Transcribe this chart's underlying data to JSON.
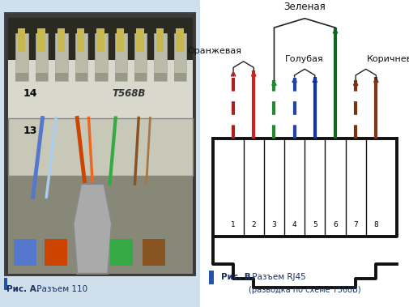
{
  "bg_color": "#cfe0ec",
  "right_panel_bg": "#ffffff",
  "fig_width": 5.05,
  "fig_height": 3.79,
  "caption_a_bold": "Рис. А.",
  "caption_a_text": " Разъем 110",
  "caption_b_bold": "Рис. В.",
  "caption_b_text": " Разъем RJ45",
  "caption_b2": "(разводка по схеме T568B)",
  "label_zelenaya": "Зеленая",
  "label_oranzhevaya": "Оранжевая",
  "label_golubaya": "Голубая",
  "label_korichnevaya": "Коричневая",
  "pin_numbers": [
    "1",
    "2",
    "3",
    "4",
    "5",
    "6",
    "7",
    "8"
  ],
  "connector_color": "#111111",
  "caption_color": "#1a3060",
  "blue_bar_color": "#2255aa",
  "wire_defs": [
    {
      "color": "#aa2222",
      "style": "dashed"
    },
    {
      "color": "#cc2222",
      "style": "solid"
    },
    {
      "color": "#228833",
      "style": "dashed"
    },
    {
      "color": "#2244aa",
      "style": "dashed"
    },
    {
      "color": "#1133aa",
      "style": "solid"
    },
    {
      "color": "#116622",
      "style": "solid"
    },
    {
      "color": "#7a3311",
      "style": "dashed"
    },
    {
      "color": "#883311",
      "style": "solid"
    }
  ]
}
